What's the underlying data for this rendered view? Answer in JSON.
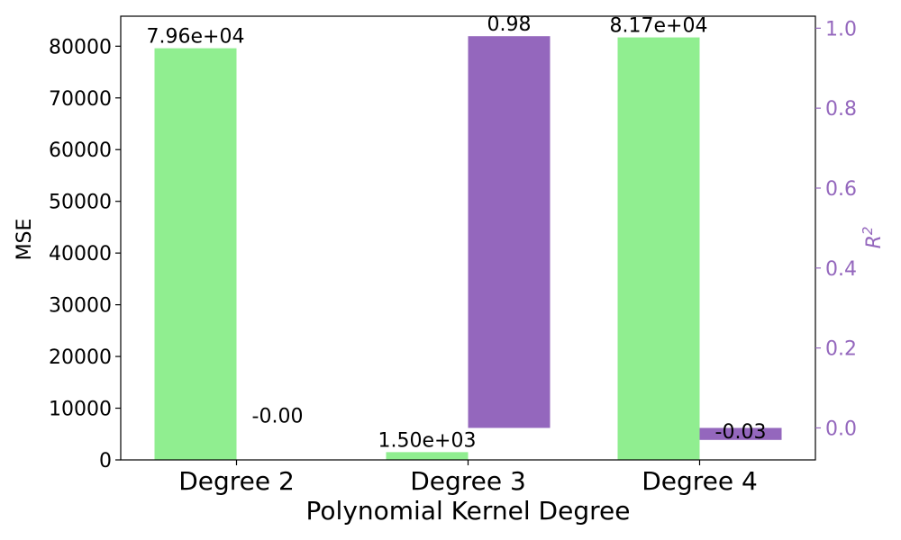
{
  "chart_data": {
    "type": "bar",
    "title": "",
    "xlabel": "Polynomial Kernel Degree",
    "categories": [
      "Degree 2",
      "Degree 3",
      "Degree 4"
    ],
    "left_axis": {
      "label": "MSE",
      "ylim": [
        0,
        85800
      ],
      "ticks": [
        0,
        10000,
        20000,
        30000,
        40000,
        50000,
        60000,
        70000,
        80000
      ],
      "tick_labels": [
        "0",
        "10000",
        "20000",
        "30000",
        "40000",
        "50000",
        "60000",
        "70000",
        "80000"
      ]
    },
    "right_axis": {
      "label": "R",
      "label_superscript": "2",
      "ylim": [
        -0.08,
        1.03
      ],
      "ticks": [
        0.0,
        0.2,
        0.4,
        0.6,
        0.8,
        1.0
      ],
      "tick_labels": [
        "0.0",
        "0.2",
        "0.4",
        "0.6",
        "0.8",
        "1.0"
      ],
      "color": "#9467bd"
    },
    "series": [
      {
        "name": "MSE",
        "axis": "left",
        "color": "#90ee90",
        "values": [
          79600,
          1500,
          81700
        ],
        "labels": [
          "7.96e+04",
          "1.50e+03",
          "8.17e+04"
        ]
      },
      {
        "name": "R2",
        "axis": "right",
        "color": "#9467bd",
        "values": [
          -0.0,
          0.98,
          -0.03
        ],
        "labels": [
          "-0.00",
          "0.98",
          "-0.03"
        ]
      }
    ],
    "grid": false,
    "legend": "none"
  }
}
